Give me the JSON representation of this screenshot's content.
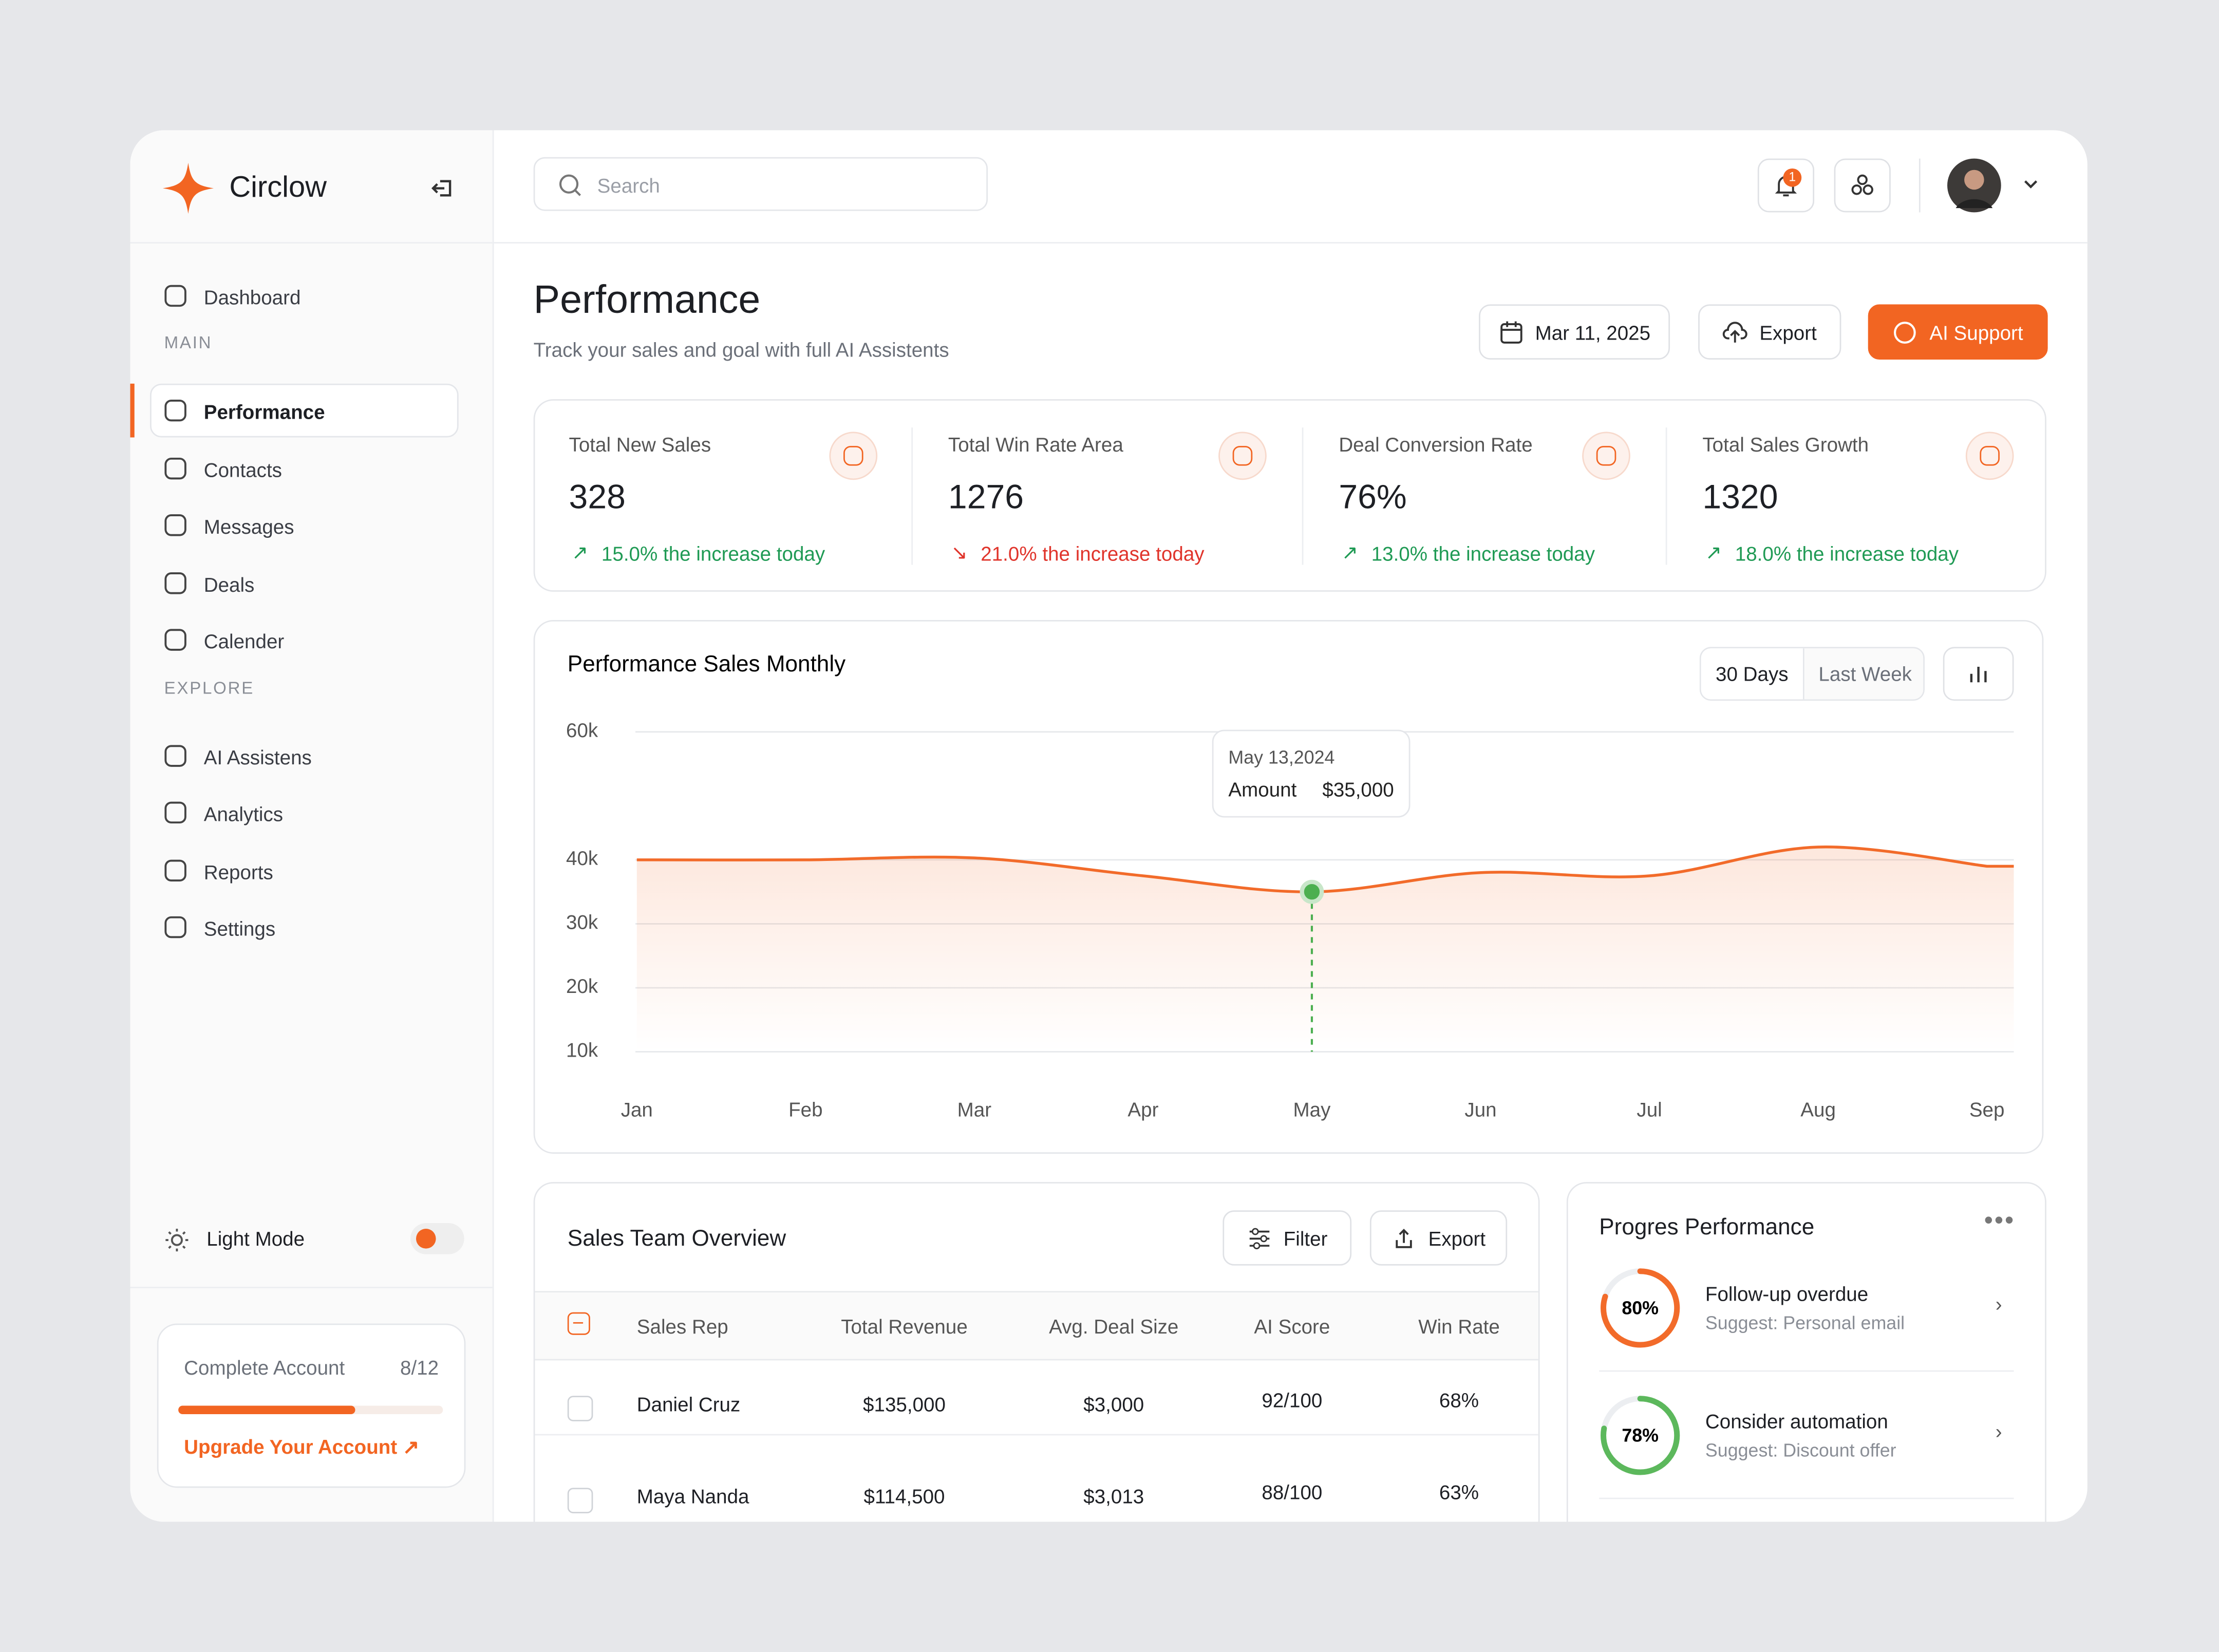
{
  "brand": "Circlow",
  "search_placeholder": "Search",
  "notification_count": "1",
  "nav": {
    "top": [
      {
        "label": "Dashboard"
      }
    ],
    "main_label": "MAIN",
    "main": [
      {
        "label": "Performance",
        "active": true
      },
      {
        "label": "Contacts"
      },
      {
        "label": "Messages"
      },
      {
        "label": "Deals"
      },
      {
        "label": "Calender"
      }
    ],
    "explore_label": "EXPLORE",
    "explore": [
      {
        "label": "AI Assistens"
      },
      {
        "label": "Analytics"
      },
      {
        "label": "Reports"
      },
      {
        "label": "Settings"
      }
    ]
  },
  "light_mode": "Light Mode",
  "account": {
    "title": "Complete Account",
    "progress_label": "8/12",
    "link": "Upgrade Your Account"
  },
  "header": {
    "title": "Performance",
    "subtitle": "Track your sales and goal with full AI Assistents",
    "date": "Mar 11, 2025",
    "export": "Export",
    "ai_support": "AI Support"
  },
  "stats": [
    {
      "label": "Total New Sales",
      "value": "328",
      "change": "15.0% the increase today",
      "trend": "up"
    },
    {
      "label": "Total Win Rate Area",
      "value": "1276",
      "change": "21.0% the increase today",
      "trend": "down"
    },
    {
      "label": "Deal Conversion Rate",
      "value": "76%",
      "change": "13.0% the increase today",
      "trend": "up"
    },
    {
      "label": "Total  Sales Growth",
      "value": "1320",
      "change": "18.0% the increase today",
      "trend": "up"
    }
  ],
  "chart_data": {
    "type": "line",
    "title": "Performance Sales Monthly",
    "tabs": [
      "30 Days",
      "Last Week"
    ],
    "categories": [
      "Jan",
      "Feb",
      "Mar",
      "Apr",
      "May",
      "Jun",
      "Jul",
      "Aug",
      "Sep"
    ],
    "values": [
      40000,
      40000,
      40300,
      37500,
      35000,
      38000,
      37500,
      42000,
      39000
    ],
    "color": "#f26b2a",
    "ylim": [
      10000,
      60000
    ],
    "yticks": [
      {
        "value": 10000,
        "label": "10k"
      },
      {
        "value": 20000,
        "label": "20k"
      },
      {
        "value": 30000,
        "label": "30k"
      },
      {
        "value": 40000,
        "label": "40k"
      },
      {
        "value": 60000,
        "label": "60k"
      }
    ],
    "grid": true,
    "tooltip": {
      "date": "May 13,2024",
      "label": "Amount",
      "value_label": "$35,000"
    }
  },
  "table": {
    "title": "Sales Team Overview",
    "filter": "Filter",
    "export": "Export",
    "columns": [
      "Sales Rep",
      "Total Revenue",
      "Avg. Deal Size",
      "AI Score",
      "Win Rate"
    ],
    "rows": [
      [
        "Daniel Cruz",
        "$135,000",
        "$3,000",
        "92/100",
        "68%"
      ],
      [
        "Maya Nanda",
        "$114,500",
        "$3,013",
        "88/100",
        "63%"
      ]
    ]
  },
  "progress": {
    "title": "Progres Performance",
    "items": [
      {
        "percent": 80,
        "percent_label": "80%",
        "title": "Follow-up overdue",
        "suggest": "Suggest: Personal email",
        "color": "#f26b2a"
      },
      {
        "percent": 78,
        "percent_label": "78%",
        "title": "Consider automation",
        "suggest": "Suggest: Discount offer",
        "color": "#5cb85c"
      }
    ]
  }
}
